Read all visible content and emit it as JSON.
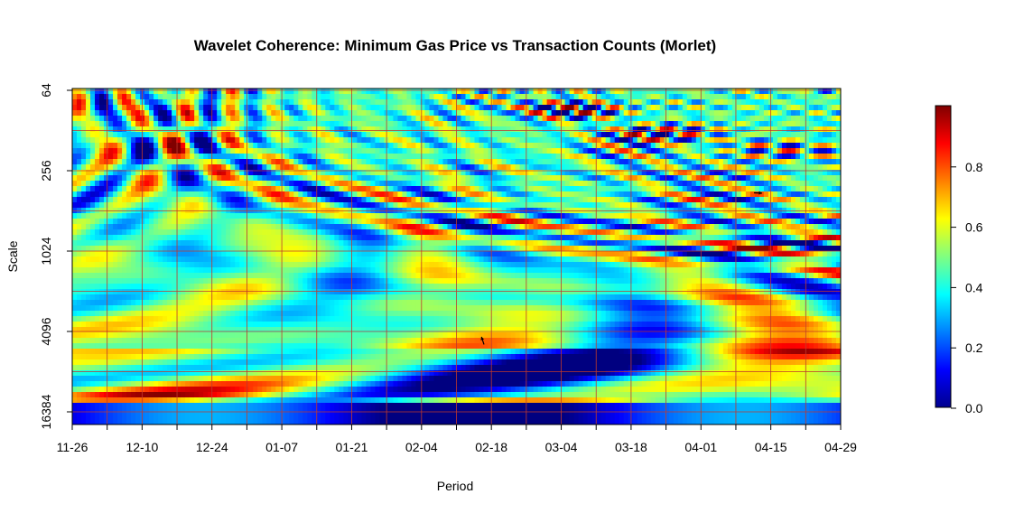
{
  "chart_data": {
    "type": "heatmap",
    "title": "Wavelet Coherence: Minimum Gas Price vs  Transaction Counts (Morlet)",
    "xlabel": "Period",
    "ylabel": "Scale",
    "x_ticks": [
      "11-26",
      "12-10",
      "12-24",
      "01-07",
      "01-21",
      "02-04",
      "02-18",
      "03-04",
      "03-18",
      "04-01",
      "04-15",
      "04-29"
    ],
    "y_ticks": [
      "64",
      "256",
      "1024",
      "4096",
      "16384"
    ],
    "y_scale": "log2",
    "y_reversed": true,
    "grid": true,
    "grid_color": "#c0392b",
    "colorbar": {
      "range": [
        0,
        1
      ],
      "ticks": [
        "0.0",
        "0.2",
        "0.4",
        "0.6",
        "0.8"
      ],
      "colormap": "jet",
      "position": "right"
    },
    "significance_arrows": true,
    "colors": {
      "low": "#00008f",
      "mid": "#80ff80",
      "high": "#800000"
    }
  }
}
